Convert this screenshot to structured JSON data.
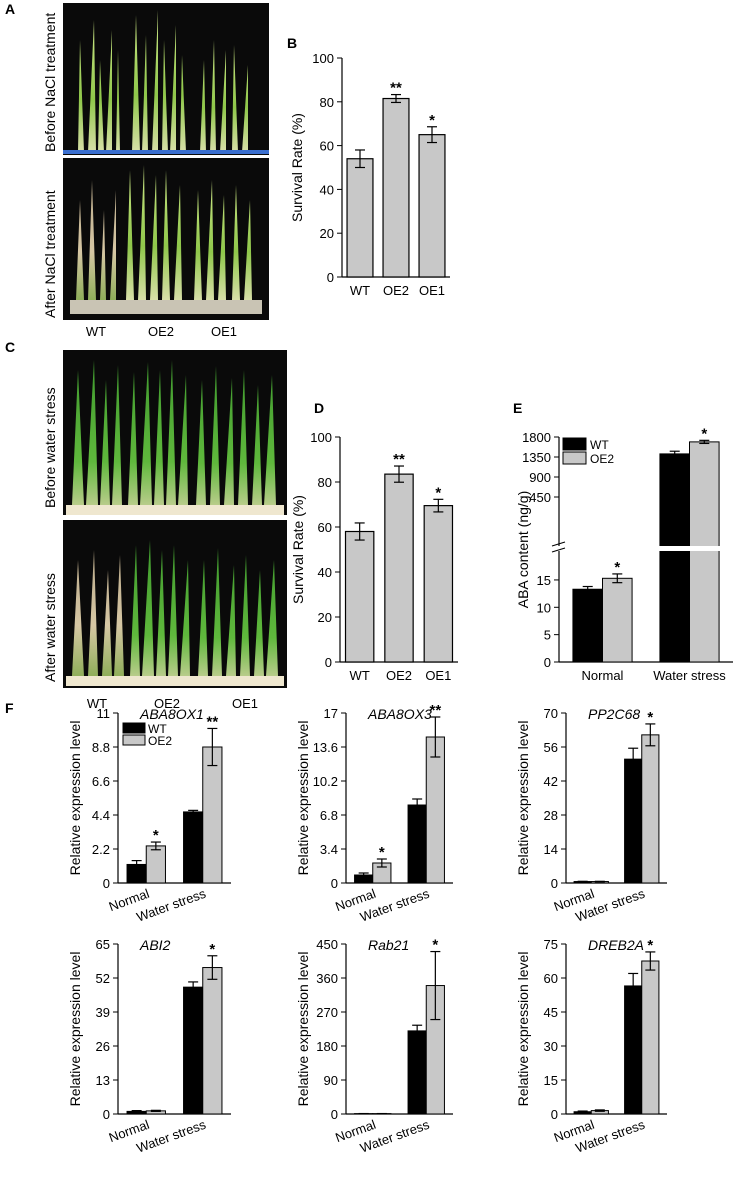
{
  "panels": {
    "A": {
      "label": "A",
      "top_caption": "Before NaCl treatment",
      "bottom_caption": "After NaCl treatment",
      "genotypes": [
        "WT",
        "OE2",
        "OE1"
      ]
    },
    "C": {
      "label": "C",
      "top_caption": "Before water stress",
      "bottom_caption": "After water stress",
      "genotypes": [
        "WT",
        "OE2",
        "OE1"
      ]
    },
    "F": {
      "label": "F"
    }
  },
  "colors": {
    "wt": "#000000",
    "oe2": "#c8c8c8",
    "bar_single": "#c8c8c8",
    "photo_bg": "#0a0a0a"
  },
  "chart_data": [
    {
      "id": "B",
      "panel": "B",
      "type": "bar",
      "categories": [
        "WT",
        "OE2",
        "OE1"
      ],
      "values": [
        54,
        81.5,
        65
      ],
      "errors": [
        4,
        1.8,
        3.6
      ],
      "stars": [
        "",
        "**",
        "*"
      ],
      "ylabel": "Survival Rate (%)",
      "ylim": [
        0,
        100
      ],
      "yticks": [
        0,
        20,
        40,
        60,
        80,
        100
      ]
    },
    {
      "id": "D",
      "panel": "D",
      "type": "bar",
      "categories": [
        "WT",
        "OE2",
        "OE1"
      ],
      "values": [
        58,
        83.5,
        69.5
      ],
      "errors": [
        3.8,
        3.6,
        2.8
      ],
      "stars": [
        "",
        "**",
        "*"
      ],
      "ylabel": "Survival Rate (%)",
      "ylim": [
        0,
        100
      ],
      "yticks": [
        0,
        20,
        40,
        60,
        80,
        100
      ]
    },
    {
      "id": "E",
      "panel": "E",
      "type": "bar",
      "categories": [
        "Normal",
        "Water stress"
      ],
      "series": [
        {
          "name": "WT",
          "values": [
            13.3,
            1420
          ],
          "errors": [
            0.5,
            60
          ]
        },
        {
          "name": "OE2",
          "values": [
            15.3,
            1690
          ],
          "errors": [
            0.8,
            35
          ]
        }
      ],
      "stars": [
        [
          "",
          "*"
        ],
        [
          "",
          "*"
        ]
      ],
      "ylabel": "ABA content (ng/g)",
      "axis_break": true,
      "lower_ylim": [
        0,
        17
      ],
      "lower_yticks": [
        0,
        5,
        10,
        15
      ],
      "upper_ylim": [
        0,
        1800
      ],
      "upper_yticks": [
        450,
        900,
        1350,
        1800
      ],
      "legend": [
        "WT",
        "OE2"
      ]
    },
    {
      "id": "F1",
      "panel": "F",
      "type": "bar",
      "title": "ABA8OX1",
      "categories": [
        "Normal",
        "Water stress"
      ],
      "series": [
        {
          "name": "WT",
          "values": [
            1.2,
            4.6
          ],
          "errors": [
            0.25,
            0.1
          ]
        },
        {
          "name": "OE2",
          "values": [
            2.4,
            8.8
          ],
          "errors": [
            0.25,
            1.2
          ]
        }
      ],
      "stars": [
        [
          "",
          "*"
        ],
        [
          "",
          "**"
        ]
      ],
      "ylabel": "Relative expression level",
      "ylim": [
        0,
        11
      ],
      "yticks": [
        "0",
        "2.2",
        "4.4",
        "6.6",
        "8.8",
        "11"
      ],
      "legend": [
        "WT",
        "OE2"
      ]
    },
    {
      "id": "F2",
      "panel": "F",
      "type": "bar",
      "title": "ABA8OX3",
      "categories": [
        "Normal",
        "Water stress"
      ],
      "series": [
        {
          "name": "WT",
          "values": [
            0.8,
            7.8
          ],
          "errors": [
            0.2,
            0.6
          ]
        },
        {
          "name": "OE2",
          "values": [
            2.0,
            14.6
          ],
          "errors": [
            0.4,
            2.0
          ]
        }
      ],
      "stars": [
        [
          "",
          "*"
        ],
        [
          "",
          "**"
        ]
      ],
      "ylabel": "Relative expression level",
      "ylim": [
        0,
        17
      ],
      "yticks": [
        "0",
        "3.4",
        "6.8",
        "10.2",
        "13.6",
        "17"
      ]
    },
    {
      "id": "F3",
      "panel": "F",
      "type": "bar",
      "title": "PP2C68",
      "categories": [
        "Normal",
        "Water stress"
      ],
      "series": [
        {
          "name": "WT",
          "values": [
            0.6,
            51
          ],
          "errors": [
            0.1,
            4.5
          ]
        },
        {
          "name": "OE2",
          "values": [
            0.6,
            61
          ],
          "errors": [
            0.1,
            4.5
          ]
        }
      ],
      "stars": [
        [
          "",
          ""
        ],
        [
          "",
          "*"
        ]
      ],
      "ylabel": "Relative expression level",
      "ylim": [
        0,
        70
      ],
      "yticks": [
        "0",
        "14",
        "28",
        "42",
        "56",
        "70"
      ]
    },
    {
      "id": "F4",
      "panel": "F",
      "type": "bar",
      "title": "ABI2",
      "categories": [
        "Normal",
        "Water stress"
      ],
      "series": [
        {
          "name": "WT",
          "values": [
            1.0,
            48.5
          ],
          "errors": [
            0.3,
            2.0
          ]
        },
        {
          "name": "OE2",
          "values": [
            1.2,
            56
          ],
          "errors": [
            0.2,
            4.5
          ]
        }
      ],
      "stars": [
        [
          "",
          ""
        ],
        [
          "",
          "*"
        ]
      ],
      "ylabel": "Relative expression level",
      "ylim": [
        0,
        65
      ],
      "yticks": [
        "0",
        "13",
        "26",
        "39",
        "52",
        "65"
      ]
    },
    {
      "id": "F5",
      "panel": "F",
      "type": "bar",
      "title": "Rab21",
      "categories": [
        "Normal",
        "Water stress"
      ],
      "series": [
        {
          "name": "WT",
          "values": [
            1.0,
            220
          ],
          "errors": [
            0.2,
            15
          ]
        },
        {
          "name": "OE2",
          "values": [
            1.0,
            340
          ],
          "errors": [
            0.2,
            90
          ]
        }
      ],
      "stars": [
        [
          "",
          ""
        ],
        [
          "",
          "*"
        ]
      ],
      "ylabel": "Relative expression level",
      "ylim": [
        0,
        450
      ],
      "yticks": [
        "0",
        "90",
        "180",
        "270",
        "360",
        "450"
      ]
    },
    {
      "id": "F6",
      "panel": "F",
      "type": "bar",
      "title": "DREB2A",
      "categories": [
        "Normal",
        "Water stress"
      ],
      "series": [
        {
          "name": "WT",
          "values": [
            1.0,
            56.5
          ],
          "errors": [
            0.3,
            5.5
          ]
        },
        {
          "name": "OE2",
          "values": [
            1.5,
            67.5
          ],
          "errors": [
            0.3,
            4.0
          ]
        }
      ],
      "stars": [
        [
          "",
          ""
        ],
        [
          "",
          "*"
        ]
      ],
      "ylabel": "Relative expression level",
      "ylim": [
        0,
        75
      ],
      "yticks": [
        "0",
        "15",
        "30",
        "45",
        "60",
        "75"
      ]
    }
  ]
}
